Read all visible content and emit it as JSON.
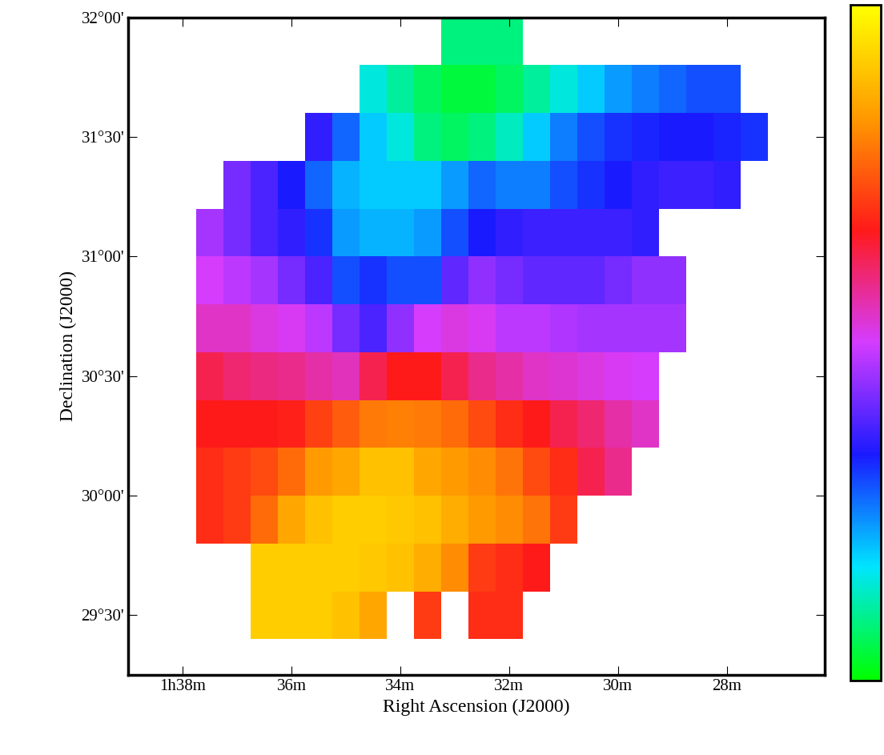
{
  "chart_data": {
    "type": "heatmap",
    "x_label": "Right Ascension (J2000)",
    "y_label": "Declination (J2000)",
    "xlim": [
      39.0,
      26.2
    ],
    "ylim": [
      29.25,
      32.0
    ],
    "xticks": [
      {
        "value": 38,
        "label": "1h38m"
      },
      {
        "value": 36,
        "label": "36m"
      },
      {
        "value": 34,
        "label": "34m"
      },
      {
        "value": 32,
        "label": "32m"
      },
      {
        "value": 30,
        "label": "30m"
      },
      {
        "value": 28,
        "label": "28m"
      }
    ],
    "yticks": [
      {
        "value": 29.5,
        "label": "29°30'"
      },
      {
        "value": 30.0,
        "label": "30°00'"
      },
      {
        "value": 30.5,
        "label": "30°30'"
      },
      {
        "value": 31.0,
        "label": "31°00'"
      },
      {
        "value": 31.5,
        "label": "31°30'"
      },
      {
        "value": 32.0,
        "label": "32°00'"
      }
    ],
    "x": [
      37.5,
      37.0,
      36.5,
      36.0,
      35.5,
      35.0,
      34.5,
      34.0,
      33.5,
      33.0,
      32.5,
      32.0,
      31.5,
      31.0,
      30.5,
      30.0,
      29.5,
      29.0,
      28.5,
      28.0,
      27.5
    ],
    "y": [
      29.5,
      29.7,
      29.9,
      30.1,
      30.3,
      30.5,
      30.7,
      30.9,
      31.1,
      31.3,
      31.5,
      31.7,
      31.9
    ],
    "cells": [
      [
        null,
        null,
        -80,
        -80,
        -80,
        -85,
        -95,
        null,
        -130,
        null,
        -135,
        -135,
        null,
        null,
        null,
        null,
        null,
        null,
        null,
        null,
        null
      ],
      [
        null,
        null,
        -80,
        -80,
        -80,
        -80,
        -82,
        -85,
        -92,
        -105,
        -130,
        -135,
        -140,
        null,
        null,
        null,
        null,
        null,
        null,
        null,
        null
      ],
      [
        -135,
        -130,
        -115,
        -95,
        -85,
        -80,
        -80,
        -82,
        -85,
        -92,
        -100,
        -105,
        -112,
        -130,
        null,
        null,
        null,
        null,
        null,
        null,
        null
      ],
      [
        -135,
        -130,
        -125,
        -115,
        -100,
        -95,
        -85,
        -85,
        -95,
        -100,
        -105,
        -112,
        -125,
        -135,
        -150,
        -160,
        null,
        null,
        null,
        null,
        null
      ],
      [
        -140,
        -140,
        -140,
        -138,
        -128,
        -120,
        -110,
        -108,
        -110,
        -115,
        -125,
        -135,
        -140,
        -150,
        -155,
        -165,
        -170,
        null,
        null,
        null,
        null
      ],
      [
        -150,
        -155,
        -158,
        -160,
        -165,
        -168,
        -150,
        -140,
        -140,
        -150,
        -160,
        -165,
        -170,
        -172,
        -175,
        -178,
        -180,
        null,
        null,
        null,
        null
      ],
      [
        -170,
        -170,
        -175,
        -178,
        -185,
        -200,
        -210,
        -195,
        -180,
        -175,
        -178,
        -185,
        -185,
        -188,
        -190,
        -190,
        -190,
        -190,
        null,
        null,
        null
      ],
      [
        -180,
        -185,
        -190,
        -200,
        -210,
        -230,
        -225,
        -230,
        -230,
        -205,
        -195,
        -200,
        -205,
        -205,
        -205,
        -200,
        -195,
        -195,
        null,
        null,
        null
      ],
      [
        -190,
        -200,
        -210,
        -215,
        -225,
        -245,
        -250,
        -250,
        -245,
        -230,
        -220,
        -215,
        -212,
        -212,
        -212,
        -212,
        -215,
        null,
        null,
        null,
        null
      ],
      [
        null,
        -200,
        -210,
        -220,
        -235,
        -250,
        -255,
        -255,
        -255,
        -245,
        -235,
        -240,
        -240,
        -230,
        -225,
        -220,
        -215,
        -212,
        -212,
        -215,
        null
      ],
      [
        null,
        null,
        null,
        null,
        -215,
        -235,
        -255,
        -265,
        -280,
        -285,
        -280,
        -270,
        -255,
        -240,
        -230,
        -225,
        -222,
        -220,
        -220,
        -222,
        -225
      ],
      [
        null,
        null,
        null,
        null,
        null,
        null,
        -265,
        -275,
        -285,
        -290,
        -290,
        -285,
        -275,
        -265,
        -255,
        -245,
        -240,
        -235,
        -230,
        -230,
        null
      ],
      [
        null,
        null,
        null,
        null,
        null,
        null,
        null,
        null,
        null,
        -280,
        -280,
        -280,
        null,
        null,
        null,
        null,
        null,
        null,
        null,
        null,
        null
      ]
    ],
    "color_range": [
      -300,
      -60
    ]
  }
}
